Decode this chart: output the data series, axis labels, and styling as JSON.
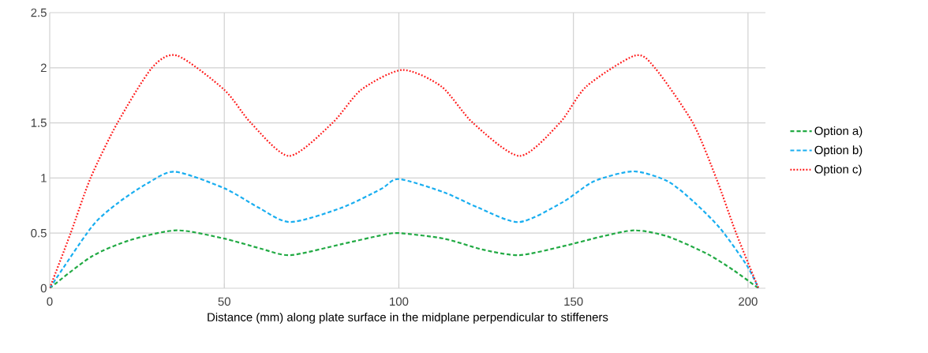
{
  "chart_data": {
    "type": "line",
    "xlabel": "Distance (mm) along plate surface in the midplane perpendicular to stiffeners",
    "xlim": [
      0,
      205
    ],
    "ylim": [
      0,
      2.5
    ],
    "xticks": [
      0,
      50,
      100,
      150,
      200
    ],
    "yticks": [
      0,
      0.5,
      1,
      1.5,
      2,
      2.5
    ],
    "grid": true,
    "legend": "right",
    "marker": "none",
    "series": [
      {
        "name": "Option a)",
        "color": "#22aa44",
        "line_style": "dashed",
        "x": [
          0,
          12.1,
          23.4,
          36.5,
          50,
          60.4,
          68.9,
          83.6,
          94.9,
          100,
          112.9,
          124.1,
          134.5,
          146.9,
          158.2,
          167.6,
          177,
          188.4,
          196,
          203
        ],
        "values": [
          0,
          0.29,
          0.44,
          0.525,
          0.45,
          0.36,
          0.3,
          0.4,
          0.48,
          0.5,
          0.45,
          0.35,
          0.3,
          0.38,
          0.47,
          0.525,
          0.47,
          0.31,
          0.16,
          0
        ]
      },
      {
        "name": "Option b)",
        "color": "#19aef0",
        "line_style": "dashed",
        "x": [
          0,
          12.1,
          19.6,
          27.9,
          35.8,
          50,
          59.9,
          68.9,
          83.6,
          94.9,
          100,
          112.9,
          122.8,
          134.5,
          146.9,
          155.9,
          167.2,
          177,
          184.6,
          192.1,
          199.6,
          203
        ],
        "values": [
          0,
          0.56,
          0.775,
          0.95,
          1.057,
          0.907,
          0.73,
          0.6,
          0.73,
          0.9,
          0.99,
          0.87,
          0.73,
          0.6,
          0.78,
          0.97,
          1.06,
          0.97,
          0.78,
          0.54,
          0.21,
          0
        ]
      },
      {
        "name": "Option c)",
        "color": "#ff1a1a",
        "line_style": "dotted",
        "x": [
          0,
          6,
          11.7,
          19.4,
          29.3,
          36.5,
          50,
          57.6,
          68.6,
          81,
          89.2,
          101,
          112.2,
          121.2,
          134.6,
          146.1,
          153.7,
          167.6,
          173.3,
          184.2,
          191,
          196.6,
          203
        ],
        "values": [
          0,
          0.5,
          1.0,
          1.5,
          2.0,
          2.11,
          1.8,
          1.5,
          1.2,
          1.5,
          1.8,
          1.98,
          1.83,
          1.5,
          1.2,
          1.5,
          1.83,
          2.11,
          2.0,
          1.5,
          0.99,
          0.5,
          0
        ]
      }
    ]
  }
}
